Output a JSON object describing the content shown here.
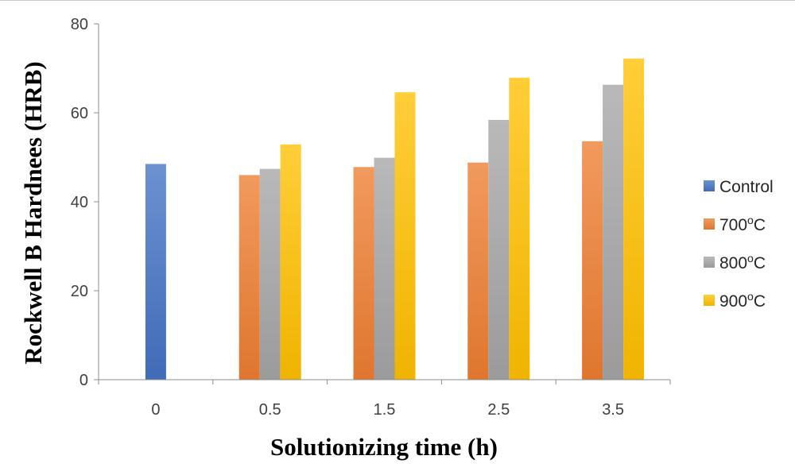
{
  "chart_data": {
    "type": "bar",
    "title": "",
    "xlabel": "Solutionizing time (h)",
    "ylabel": "Rockwell B Hardnees (HRB)",
    "categories": [
      "0",
      "0.5",
      "1.5",
      "2.5",
      "3.5"
    ],
    "ylim": [
      0,
      80
    ],
    "yticks": [
      0,
      20,
      40,
      60,
      80
    ],
    "grid": false,
    "legend_position": "right",
    "series": [
      {
        "name": "Control",
        "legend_base": "Control",
        "legend_sup": "",
        "legend_suffix": "",
        "color": "#4472C4",
        "values": [
          48.5,
          null,
          null,
          null,
          null
        ]
      },
      {
        "name": "700ºC",
        "legend_base": "700",
        "legend_sup": "o",
        "legend_suffix": "C",
        "color": "#ED7D31",
        "values": [
          null,
          46,
          47.8,
          48.8,
          53.6
        ]
      },
      {
        "name": "800ºC",
        "legend_base": "800",
        "legend_sup": "o",
        "legend_suffix": "C",
        "color": "#A5A5A5",
        "values": [
          null,
          47.4,
          49.9,
          58.4,
          66.3
        ]
      },
      {
        "name": "900ºC",
        "legend_base": "900",
        "legend_sup": "o",
        "legend_suffix": "C",
        "color": "#FFC000",
        "values": [
          null,
          52.9,
          64.6,
          67.9,
          72.2
        ]
      }
    ]
  }
}
